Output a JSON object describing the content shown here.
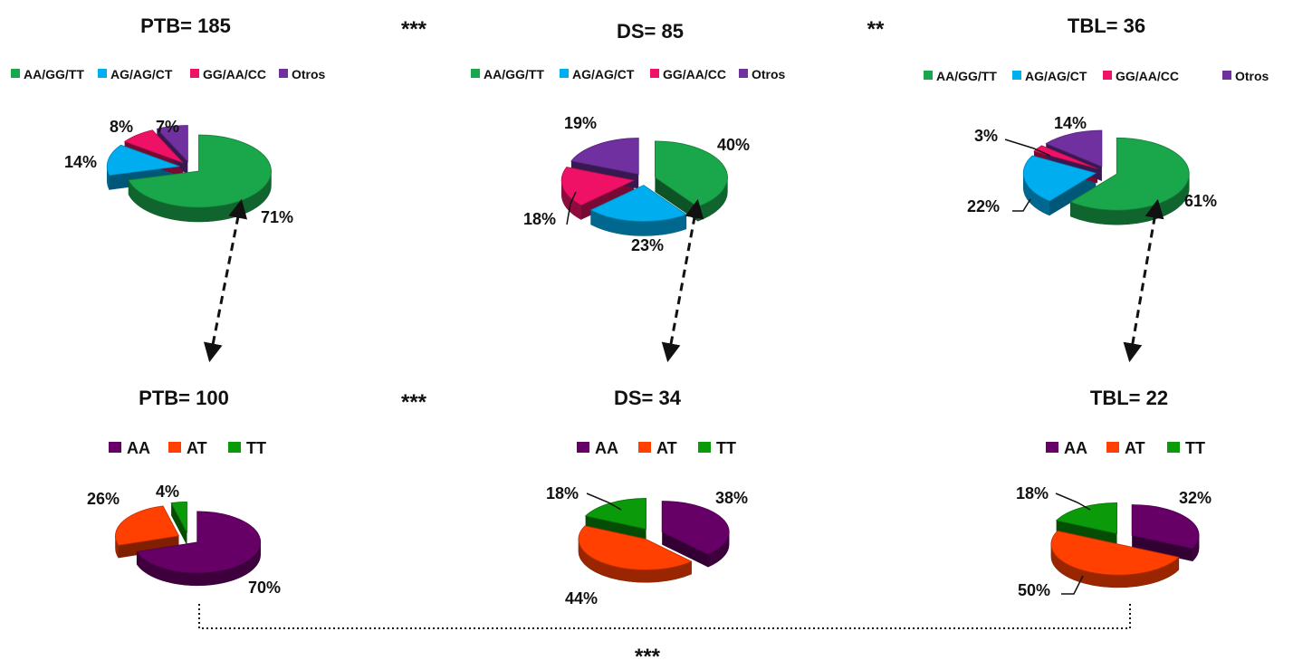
{
  "chart_data": [
    {
      "type": "pie",
      "title": "PTB= 185",
      "categories": [
        "AA/GG/TT",
        "AG/AG/CT",
        "GG/AA/CC",
        "Otros"
      ],
      "values": [
        71,
        14,
        8,
        7
      ],
      "labels": [
        "71%",
        "14%",
        "8%",
        "7%"
      ],
      "colors": [
        "#1aa64b",
        "#00aeef",
        "#ee1166",
        "#7030a0"
      ],
      "legend": "top"
    },
    {
      "type": "pie",
      "title": "DS= 85",
      "categories": [
        "AA/GG/TT",
        "AG/AG/CT",
        "GG/AA/CC",
        "Otros"
      ],
      "values": [
        40,
        23,
        18,
        19
      ],
      "labels": [
        "40%",
        "23%",
        "18%",
        "19%"
      ],
      "colors": [
        "#1aa64b",
        "#00aeef",
        "#ee1166",
        "#7030a0"
      ],
      "legend": "top"
    },
    {
      "type": "pie",
      "title": "TBL= 36",
      "categories": [
        "AA/GG/TT",
        "AG/AG/CT",
        "GG/AA/CC",
        "Otros"
      ],
      "values": [
        61,
        22,
        3,
        14
      ],
      "labels": [
        "61%",
        "22%",
        "3%",
        "14%"
      ],
      "colors": [
        "#1aa64b",
        "#00aeef",
        "#ee1166",
        "#7030a0"
      ],
      "legend": "top"
    },
    {
      "type": "pie",
      "title": "PTB= 100",
      "categories": [
        "AA",
        "AT",
        "TT"
      ],
      "values": [
        70,
        26,
        4
      ],
      "labels": [
        "70%",
        "26%",
        "4%"
      ],
      "colors": [
        "#660066",
        "#ff4000",
        "#0a9a0a"
      ],
      "legend": "top"
    },
    {
      "type": "pie",
      "title": "DS= 34",
      "categories": [
        "AA",
        "AT",
        "TT"
      ],
      "values": [
        38,
        44,
        18
      ],
      "labels": [
        "38%",
        "44%",
        "18%"
      ],
      "colors": [
        "#660066",
        "#ff4000",
        "#0a9a0a"
      ],
      "legend": "top"
    },
    {
      "type": "pie",
      "title": "TBL= 22",
      "categories": [
        "AA",
        "AT",
        "TT"
      ],
      "values": [
        32,
        50,
        18
      ],
      "labels": [
        "32%",
        "50%",
        "18%"
      ],
      "colors": [
        "#660066",
        "#ff4000",
        "#0a9a0a"
      ],
      "legend": "top"
    }
  ],
  "significance": {
    "top_ptb_ds": "***",
    "top_ds_tbl": "**",
    "bottom_ptb_ds": "***",
    "bottom_ptb_tbl": "***"
  }
}
